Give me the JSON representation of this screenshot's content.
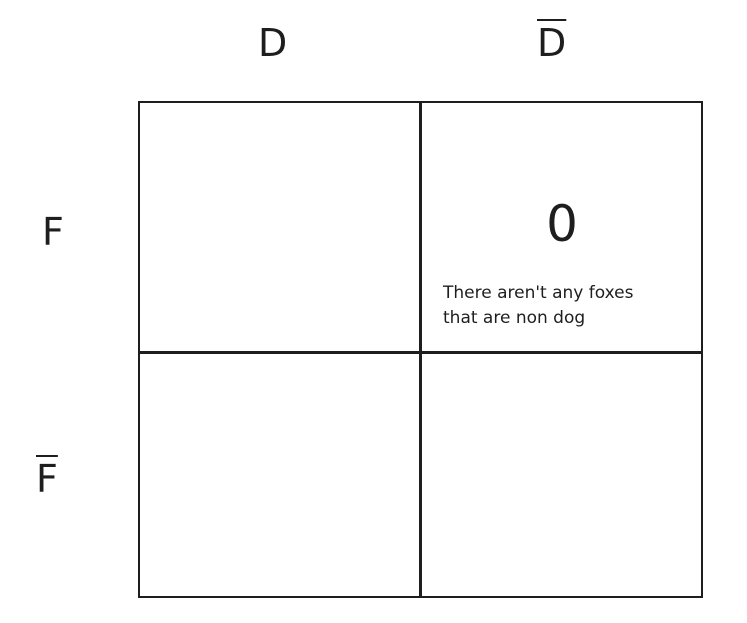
{
  "columns": {
    "d": "D",
    "not_d": "D"
  },
  "rows": {
    "f": "F",
    "not_f": "F"
  },
  "cells": {
    "f_not_d": {
      "value": "0",
      "note_line1": "There aren't any foxes",
      "note_line2": "that are non dog"
    }
  },
  "colors": {
    "stroke": "#1e1e1e",
    "background": "#ffffff"
  }
}
